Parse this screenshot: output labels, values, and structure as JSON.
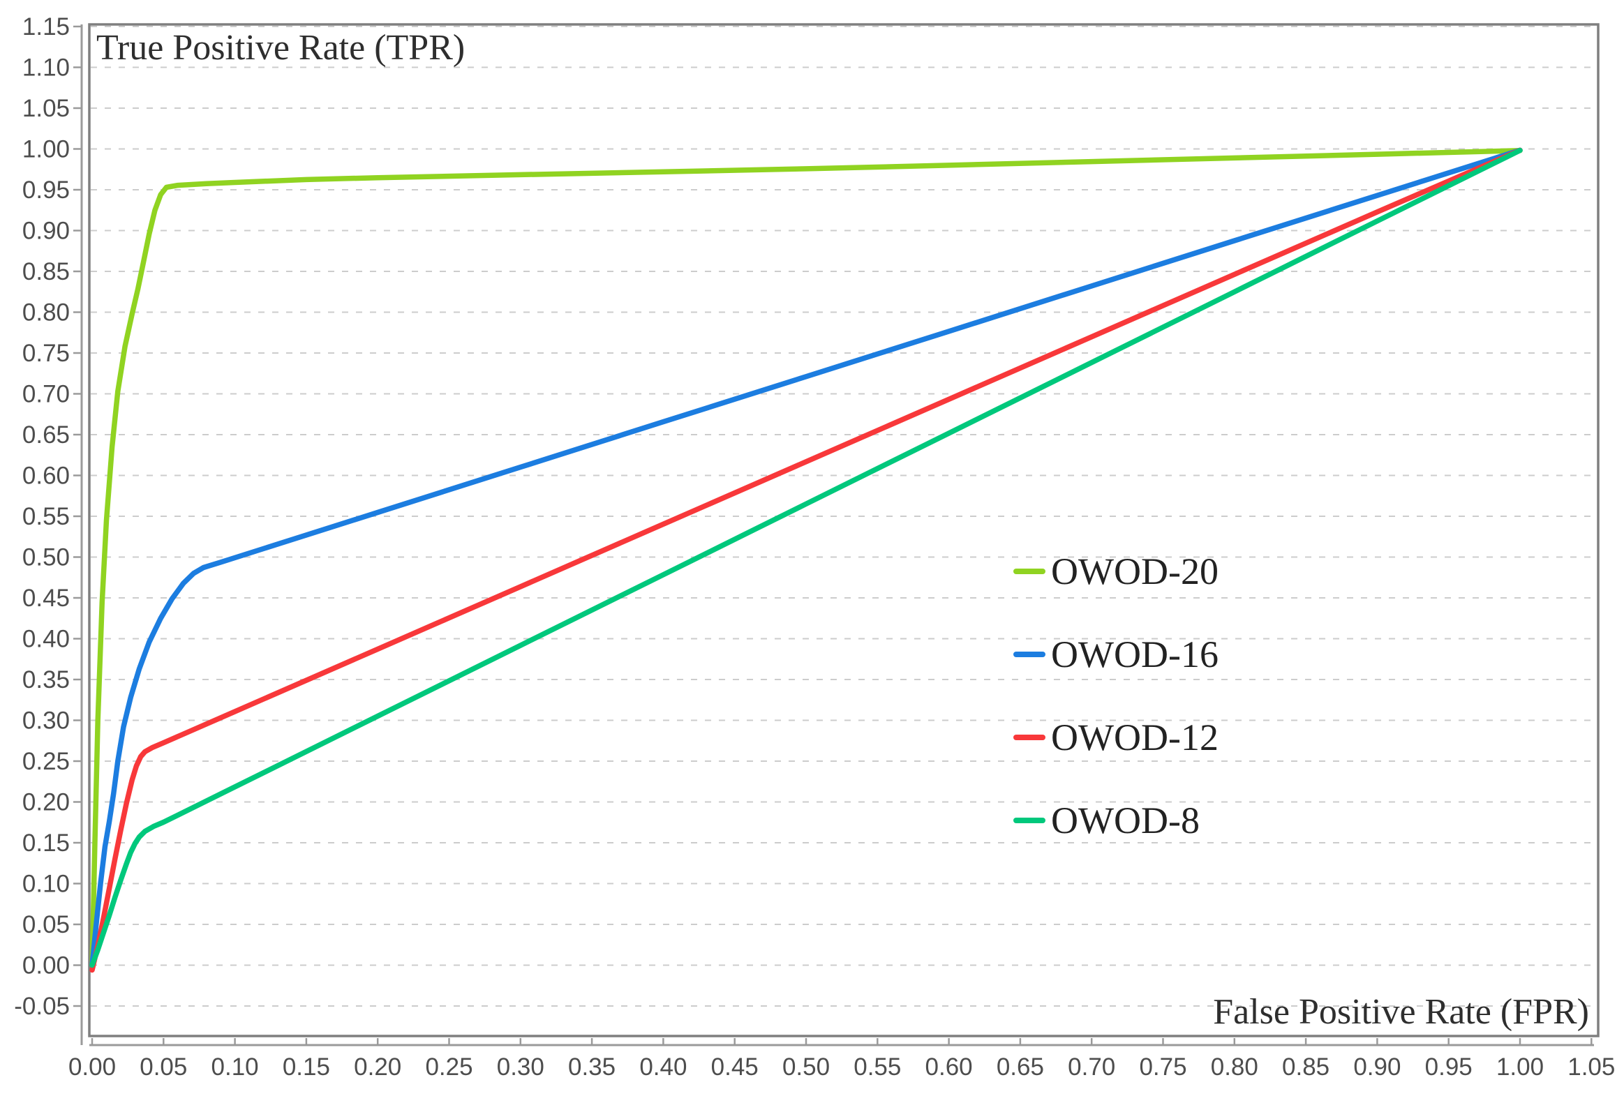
{
  "titles": {
    "y_axis": "True Positive Rate (TPR)",
    "x_axis": "False Positive Rate (FPR)"
  },
  "chart_data": {
    "type": "line",
    "title": "",
    "xlabel": "False Positive Rate (FPR)",
    "ylabel": "True Positive Rate (TPR)",
    "xlim": [
      0.0,
      1.05
    ],
    "ylim": [
      -0.05,
      1.15
    ],
    "x_tick_labels": [
      "0.00",
      "0.05",
      "0.10",
      "0.15",
      "0.20",
      "0.25",
      "0.30",
      "0.35",
      "0.40",
      "0.45",
      "0.50",
      "0.55",
      "0.60",
      "0.65",
      "0.70",
      "0.75",
      "0.80",
      "0.85",
      "0.90",
      "0.95",
      "1.00",
      "1.05"
    ],
    "y_tick_labels": [
      "-0.05",
      "0.00",
      "0.05",
      "0.10",
      "0.15",
      "0.20",
      "0.25",
      "0.30",
      "0.35",
      "0.40",
      "0.45",
      "0.50",
      "0.55",
      "0.60",
      "0.65",
      "0.70",
      "0.75",
      "0.80",
      "0.85",
      "0.90",
      "0.95",
      "1.00",
      "1.05",
      "1.10",
      "1.15"
    ],
    "grid": {
      "horizontal": true,
      "vertical": false,
      "style": "dashed"
    },
    "legend_position": "right-center",
    "series": [
      {
        "name": "OWOD-20",
        "color": "#90d321",
        "points": [
          [
            0,
            0
          ],
          [
            0.002,
            0.155
          ],
          [
            0.004,
            0.3
          ],
          [
            0.007,
            0.445
          ],
          [
            0.01,
            0.545
          ],
          [
            0.014,
            0.635
          ],
          [
            0.018,
            0.703
          ],
          [
            0.023,
            0.758
          ],
          [
            0.028,
            0.798
          ],
          [
            0.032,
            0.828
          ],
          [
            0.036,
            0.862
          ],
          [
            0.04,
            0.896
          ],
          [
            0.044,
            0.925
          ],
          [
            0.048,
            0.944
          ],
          [
            0.052,
            0.953
          ],
          [
            0.06,
            0.9555
          ],
          [
            0.08,
            0.9575
          ],
          [
            0.1,
            0.959
          ],
          [
            0.15,
            0.9625
          ],
          [
            0.2,
            0.9648
          ],
          [
            0.3,
            0.9685
          ],
          [
            0.4,
            0.972
          ],
          [
            0.5,
            0.9757
          ],
          [
            0.6,
            0.98
          ],
          [
            0.7,
            0.9845
          ],
          [
            0.8,
            0.989
          ],
          [
            0.9,
            0.9935
          ],
          [
            1.0,
            0.998
          ]
        ]
      },
      {
        "name": "OWOD-16",
        "color": "#1c7de0",
        "points": [
          [
            0,
            0
          ],
          [
            0.003,
            0.052
          ],
          [
            0.006,
            0.102
          ],
          [
            0.009,
            0.145
          ],
          [
            0.012,
            0.176
          ],
          [
            0.015,
            0.21
          ],
          [
            0.018,
            0.25
          ],
          [
            0.022,
            0.292
          ],
          [
            0.027,
            0.328
          ],
          [
            0.033,
            0.363
          ],
          [
            0.04,
            0.396
          ],
          [
            0.048,
            0.425
          ],
          [
            0.056,
            0.449
          ],
          [
            0.064,
            0.468
          ],
          [
            0.071,
            0.48
          ],
          [
            0.078,
            0.4872
          ],
          [
            0.09,
            0.4937
          ],
          [
            0.2,
            0.5547
          ],
          [
            0.3,
            0.6102
          ],
          [
            0.4,
            0.6657
          ],
          [
            0.5,
            0.7211
          ],
          [
            0.6,
            0.7766
          ],
          [
            0.7,
            0.8321
          ],
          [
            0.8,
            0.8876
          ],
          [
            0.9,
            0.943
          ],
          [
            1.0,
            0.9985
          ]
        ]
      },
      {
        "name": "OWOD-12",
        "color": "#f8383a",
        "points": [
          [
            0,
            -0.006
          ],
          [
            0.004,
            0.024
          ],
          [
            0.008,
            0.058
          ],
          [
            0.012,
            0.094
          ],
          [
            0.016,
            0.13
          ],
          [
            0.02,
            0.165
          ],
          [
            0.024,
            0.198
          ],
          [
            0.028,
            0.227
          ],
          [
            0.031,
            0.244
          ],
          [
            0.034,
            0.2555
          ],
          [
            0.037,
            0.2615
          ],
          [
            0.042,
            0.2665
          ],
          [
            0.05,
            0.2725
          ],
          [
            0.1,
            0.3108
          ],
          [
            0.2,
            0.3873
          ],
          [
            0.3,
            0.4638
          ],
          [
            0.4,
            0.5403
          ],
          [
            0.5,
            0.6168
          ],
          [
            0.6,
            0.6933
          ],
          [
            0.7,
            0.7698
          ],
          [
            0.8,
            0.8463
          ],
          [
            0.9,
            0.9228
          ],
          [
            1.0,
            0.9985
          ]
        ]
      },
      {
        "name": "OWOD-8",
        "color": "#00c87c",
        "points": [
          [
            0,
            0
          ],
          [
            0.004,
            0.019
          ],
          [
            0.008,
            0.04
          ],
          [
            0.012,
            0.061
          ],
          [
            0.016,
            0.083
          ],
          [
            0.02,
            0.104
          ],
          [
            0.024,
            0.124
          ],
          [
            0.027,
            0.138
          ],
          [
            0.03,
            0.149
          ],
          [
            0.033,
            0.157
          ],
          [
            0.037,
            0.164
          ],
          [
            0.043,
            0.17
          ],
          [
            0.05,
            0.1752
          ],
          [
            0.1,
            0.2185
          ],
          [
            0.2,
            0.3051
          ],
          [
            0.3,
            0.3918
          ],
          [
            0.4,
            0.4784
          ],
          [
            0.5,
            0.5651
          ],
          [
            0.6,
            0.6517
          ],
          [
            0.7,
            0.7384
          ],
          [
            0.8,
            0.825
          ],
          [
            0.9,
            0.9117
          ],
          [
            1.0,
            0.9983
          ]
        ]
      }
    ]
  },
  "style": {
    "grid_color": "#cccccc",
    "axis_color": "#9a9a9a",
    "box_color": "#7f7f7f",
    "tick_label_color": "#4d4d4d",
    "line_width": 7.5
  }
}
